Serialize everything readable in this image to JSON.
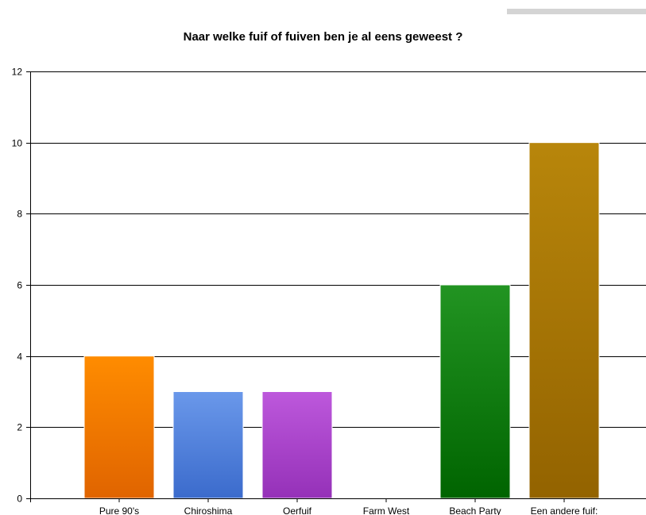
{
  "chart_data": {
    "type": "bar",
    "title": "Naar welke fuif of fuiven ben je al eens geweest ?",
    "xlabel": "",
    "ylabel": "",
    "categories": [
      "Pure 90's",
      "Chiroshima",
      "Oerfuif",
      "Farm West",
      "Beach Party",
      "Een andere fuif:"
    ],
    "values": [
      4,
      3,
      3,
      0,
      6,
      10
    ],
    "ylim": [
      0,
      12
    ],
    "yticks": [
      0,
      2,
      4,
      6,
      8,
      10,
      12
    ],
    "grid": true,
    "legend": "none",
    "colors": [
      [
        "#ff8c00",
        "#e06400"
      ],
      [
        "#6a98ea",
        "#3b6bcc"
      ],
      [
        "#bd58dc",
        "#9531b8"
      ],
      [
        "#b0b0b0",
        "#808080"
      ],
      [
        "#229422",
        "#006400"
      ],
      [
        "#b8860b",
        "#936300"
      ]
    ]
  }
}
